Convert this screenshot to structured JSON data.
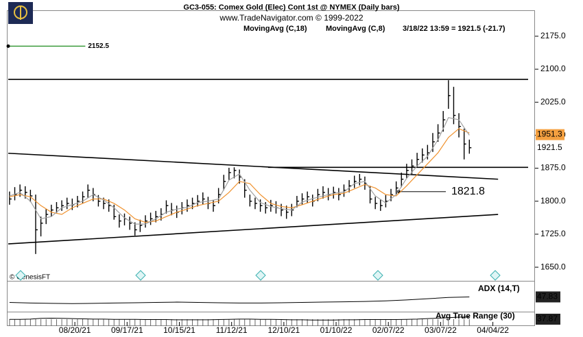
{
  "chart_data": {
    "type": "ohlc",
    "title": "GC3-055:  Comex Gold (Elec) Cont 1st @ NYMEX  (Daily bars)",
    "subtitle": "www.TradeNavigator.com © 1999-2022",
    "status": "3/18/22 13:59 = 1921.5 (-21.7)",
    "watermark": "© GenesisFT",
    "bars": {
      "color": "#000000",
      "x": [
        0,
        2,
        4,
        6,
        8,
        10,
        12,
        14,
        16,
        18,
        20,
        22,
        24,
        26,
        28,
        30,
        32,
        34,
        36,
        38,
        40,
        42,
        44,
        46,
        48,
        50,
        52,
        54,
        56,
        58,
        60,
        62,
        64,
        66,
        68,
        70,
        72,
        74,
        76,
        78,
        80,
        82,
        84,
        86,
        88,
        90,
        92,
        94,
        96,
        98,
        100,
        102,
        104,
        106,
        108,
        110,
        112,
        114,
        116,
        118,
        120,
        122,
        124,
        126,
        128,
        130,
        132,
        134,
        136,
        138,
        140,
        142,
        144,
        146,
        148,
        150,
        152,
        154,
        156,
        158,
        160,
        162,
        164,
        166,
        168,
        170,
        172,
        174,
        176
      ],
      "high": [
        1822,
        1832,
        1838,
        1834,
        1826,
        1815,
        1765,
        1782,
        1792,
        1798,
        1802,
        1808,
        1806,
        1812,
        1822,
        1838,
        1830,
        1814,
        1808,
        1804,
        1792,
        1770,
        1772,
        1765,
        1752,
        1758,
        1768,
        1774,
        1778,
        1784,
        1802,
        1796,
        1790,
        1798,
        1804,
        1808,
        1814,
        1820,
        1810,
        1802,
        1830,
        1860,
        1876,
        1877,
        1872,
        1850,
        1815,
        1808,
        1804,
        1798,
        1803,
        1800,
        1794,
        1790,
        1794,
        1812,
        1818,
        1822,
        1815,
        1828,
        1834,
        1830,
        1833,
        1830,
        1838,
        1848,
        1858,
        1862,
        1856,
        1835,
        1810,
        1804,
        1814,
        1828,
        1845,
        1865,
        1885,
        1895,
        1910,
        1920,
        1928,
        1955,
        1975,
        2005,
        2075,
        2060,
        2000,
        1965,
        1940
      ],
      "low": [
        1792,
        1802,
        1810,
        1806,
        1798,
        1680,
        1720,
        1748,
        1765,
        1772,
        1778,
        1782,
        1780,
        1786,
        1795,
        1808,
        1800,
        1788,
        1782,
        1776,
        1758,
        1740,
        1745,
        1735,
        1722,
        1730,
        1740,
        1746,
        1752,
        1756,
        1772,
        1768,
        1762,
        1770,
        1776,
        1782,
        1788,
        1792,
        1782,
        1776,
        1795,
        1825,
        1848,
        1852,
        1840,
        1808,
        1788,
        1782,
        1776,
        1772,
        1776,
        1772,
        1766,
        1760,
        1766,
        1786,
        1792,
        1796,
        1788,
        1800,
        1806,
        1802,
        1806,
        1802,
        1810,
        1820,
        1830,
        1836,
        1826,
        1795,
        1782,
        1778,
        1786,
        1800,
        1815,
        1832,
        1852,
        1862,
        1878,
        1888,
        1895,
        1912,
        1935,
        1958,
        2010,
        1975,
        1945,
        1895,
        1908
      ],
      "close": [
        1805,
        1815,
        1825,
        1820,
        1812,
        1735,
        1750,
        1770,
        1780,
        1785,
        1790,
        1795,
        1792,
        1800,
        1810,
        1825,
        1815,
        1800,
        1795,
        1790,
        1765,
        1755,
        1760,
        1750,
        1735,
        1745,
        1755,
        1760,
        1765,
        1770,
        1790,
        1780,
        1775,
        1785,
        1790,
        1795,
        1800,
        1805,
        1795,
        1790,
        1815,
        1845,
        1865,
        1870,
        1855,
        1825,
        1800,
        1795,
        1790,
        1785,
        1790,
        1785,
        1780,
        1775,
        1780,
        1800,
        1805,
        1810,
        1800,
        1815,
        1820,
        1815,
        1820,
        1815,
        1825,
        1835,
        1845,
        1850,
        1840,
        1805,
        1795,
        1790,
        1800,
        1815,
        1830,
        1850,
        1870,
        1880,
        1895,
        1905,
        1910,
        1935,
        1955,
        1985,
        2040,
        1995,
        1970,
        1930,
        1921.5
      ]
    },
    "series": [
      {
        "name": "MovingAvg (C,18)",
        "color": "#f0922e",
        "x": [
          0,
          4,
          8,
          12,
          16,
          20,
          24,
          28,
          32,
          36,
          40,
          44,
          48,
          52,
          56,
          60,
          64,
          68,
          72,
          76,
          80,
          84,
          88,
          92,
          96,
          100,
          104,
          108,
          112,
          116,
          120,
          124,
          128,
          132,
          136,
          140,
          144,
          148,
          152,
          156,
          160,
          164,
          168,
          172,
          176
        ],
        "values": [
          1810,
          1815,
          1810,
          1790,
          1775,
          1770,
          1785,
          1795,
          1805,
          1805,
          1795,
          1780,
          1760,
          1752,
          1755,
          1765,
          1775,
          1782,
          1790,
          1795,
          1800,
          1820,
          1845,
          1840,
          1815,
          1795,
          1788,
          1785,
          1792,
          1800,
          1808,
          1815,
          1818,
          1828,
          1838,
          1830,
          1815,
          1812,
          1835,
          1860,
          1885,
          1910,
          1945,
          1965,
          1955
        ]
      },
      {
        "name": "MovingAvg (C,8)",
        "color": "#a0a0a0",
        "x": [
          0,
          4,
          8,
          12,
          16,
          20,
          24,
          28,
          32,
          36,
          40,
          44,
          48,
          52,
          56,
          60,
          64,
          68,
          72,
          76,
          80,
          84,
          88,
          92,
          96,
          100,
          104,
          108,
          112,
          116,
          120,
          124,
          128,
          132,
          136,
          140,
          144,
          148,
          152,
          156,
          160,
          164,
          168,
          172,
          176
        ],
        "values": [
          1812,
          1820,
          1800,
          1760,
          1765,
          1785,
          1792,
          1800,
          1815,
          1803,
          1785,
          1762,
          1748,
          1748,
          1760,
          1775,
          1782,
          1786,
          1797,
          1800,
          1805,
          1848,
          1862,
          1825,
          1797,
          1788,
          1783,
          1780,
          1798,
          1806,
          1812,
          1818,
          1821,
          1840,
          1845,
          1812,
          1796,
          1815,
          1852,
          1880,
          1902,
          1940,
          1990,
          1985,
          1950
        ]
      }
    ],
    "trendlines": [
      {
        "x": [
          -0.5,
          198.5
        ],
        "y": [
          2077,
          2077
        ]
      },
      {
        "x": [
          99,
          198.5
        ],
        "y": [
          1877,
          1877
        ]
      },
      {
        "x": [
          -0.5,
          187
        ],
        "y": [
          1909,
          1850
        ]
      },
      {
        "x": [
          -0.5,
          187
        ],
        "y": [
          1703,
          1770
        ]
      }
    ],
    "levels": [
      {
        "value": 2152.5,
        "x": [
          -0.5,
          29
        ],
        "color": "#1e8c1e"
      },
      {
        "value": 1821.8,
        "x": [
          149,
          167
        ],
        "color": "#333333"
      }
    ],
    "price_labels": [
      {
        "value": 1951.3,
        "color": "#f4a040"
      },
      {
        "value": 1921.5,
        "color": "#ffffff"
      }
    ],
    "xlim": [
      -0.5,
      198.5
    ],
    "xticks": [
      {
        "value": 25,
        "label": "08/20/21"
      },
      {
        "value": 45,
        "label": "09/17/21"
      },
      {
        "value": 65,
        "label": "10/15/21"
      },
      {
        "value": 85,
        "label": "11/12/21"
      },
      {
        "value": 105,
        "label": "12/10/21"
      },
      {
        "value": 125,
        "label": "01/10/22"
      },
      {
        "value": 145,
        "label": "02/07/22"
      },
      {
        "value": 165,
        "label": "03/07/22"
      },
      {
        "value": 185,
        "label": "04/04/22"
      }
    ],
    "ylim": [
      1619,
      2234
    ],
    "yticks": [
      {
        "value": 1650,
        "label": "1650.0"
      },
      {
        "value": 1725,
        "label": "1725.0"
      },
      {
        "value": 1800,
        "label": "1800.0"
      },
      {
        "value": 1875,
        "label": "1875.0"
      },
      {
        "value": 1950,
        "label": "1950.0"
      },
      {
        "value": 2025,
        "label": "2025.0"
      },
      {
        "value": 2100,
        "label": "2100.0"
      },
      {
        "value": 2175,
        "label": "2175.0"
      }
    ],
    "adx": {
      "name": "ADX (14,T)",
      "color": "#000000",
      "ylim": [
        0,
        100
      ],
      "last": 47.83,
      "x": [
        0,
        8,
        16,
        24,
        32,
        40,
        48,
        56,
        64,
        72,
        80,
        88,
        96,
        104,
        112,
        120,
        128,
        136,
        144,
        152,
        160,
        168,
        176
      ],
      "values": [
        30,
        28,
        27,
        26,
        27,
        28,
        29,
        30,
        31,
        30,
        29,
        28,
        28,
        29,
        30,
        31,
        32,
        33,
        35,
        38,
        42,
        46,
        47.83
      ]
    },
    "atr": {
      "name": "Avg True Range (30)",
      "color": "#000000",
      "ylim": [
        0,
        60
      ],
      "last": 37.87,
      "x": [
        0,
        4,
        8,
        12,
        16,
        20,
        24,
        28,
        32,
        36,
        40,
        44,
        48,
        52,
        56,
        60,
        64,
        68,
        72,
        76,
        80,
        84,
        88,
        92,
        96,
        100,
        104,
        108,
        112,
        116,
        120,
        124,
        128,
        132,
        136,
        140,
        144,
        148,
        152,
        156,
        160,
        164,
        168,
        172,
        176
      ],
      "values": [
        28,
        28,
        29,
        32,
        33,
        32,
        31,
        30,
        29,
        29,
        28,
        28,
        28,
        27,
        27,
        27,
        26,
        26,
        26,
        26,
        27,
        28,
        29,
        29,
        28,
        28,
        27,
        26,
        26,
        25,
        25,
        25,
        26,
        26,
        27,
        27,
        27,
        27,
        28,
        29,
        31,
        33,
        35,
        37,
        37.87
      ]
    }
  }
}
